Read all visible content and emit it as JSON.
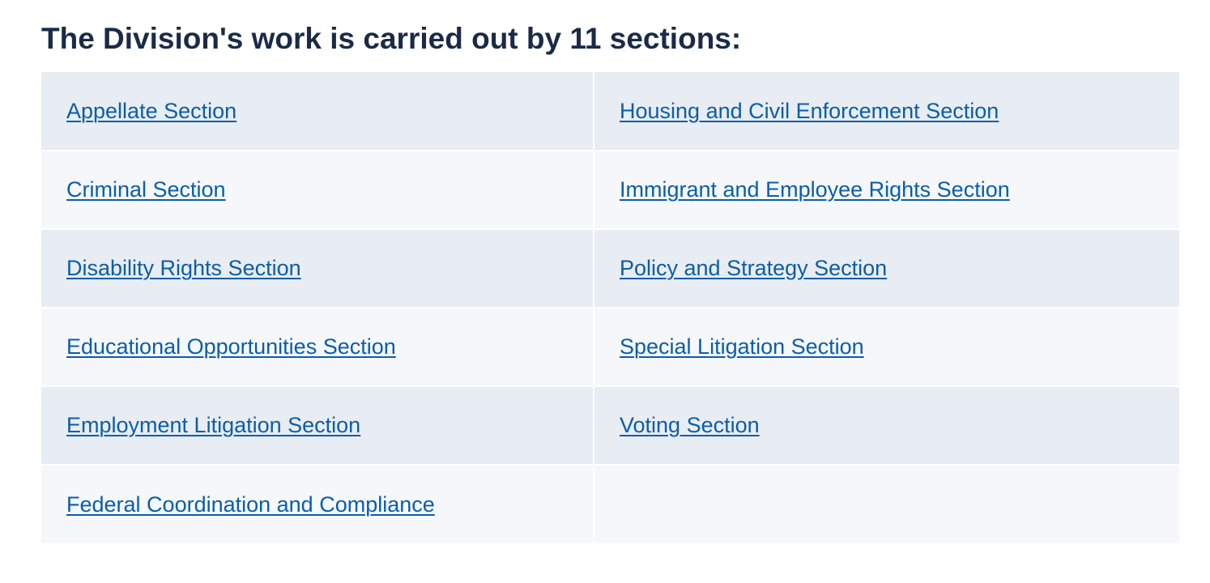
{
  "heading": "The Division's work is carried out by 11 sections:",
  "sections": {
    "rows": [
      [
        "Appellate Section",
        "Housing and Civil Enforcement Section"
      ],
      [
        "Criminal Section",
        "Immigrant and Employee Rights Section"
      ],
      [
        "Disability Rights Section",
        "Policy and Strategy Section"
      ],
      [
        "Educational Opportunities Section",
        "Special Litigation Section"
      ],
      [
        "Employment Litigation Section",
        "Voting Section"
      ],
      [
        "Federal Coordination and Compliance",
        ""
      ]
    ]
  },
  "colors": {
    "heading": "#1b2b47",
    "link": "#0a5ea8",
    "row_odd": "#e8ecf3",
    "row_even": "#f5f7fb"
  }
}
